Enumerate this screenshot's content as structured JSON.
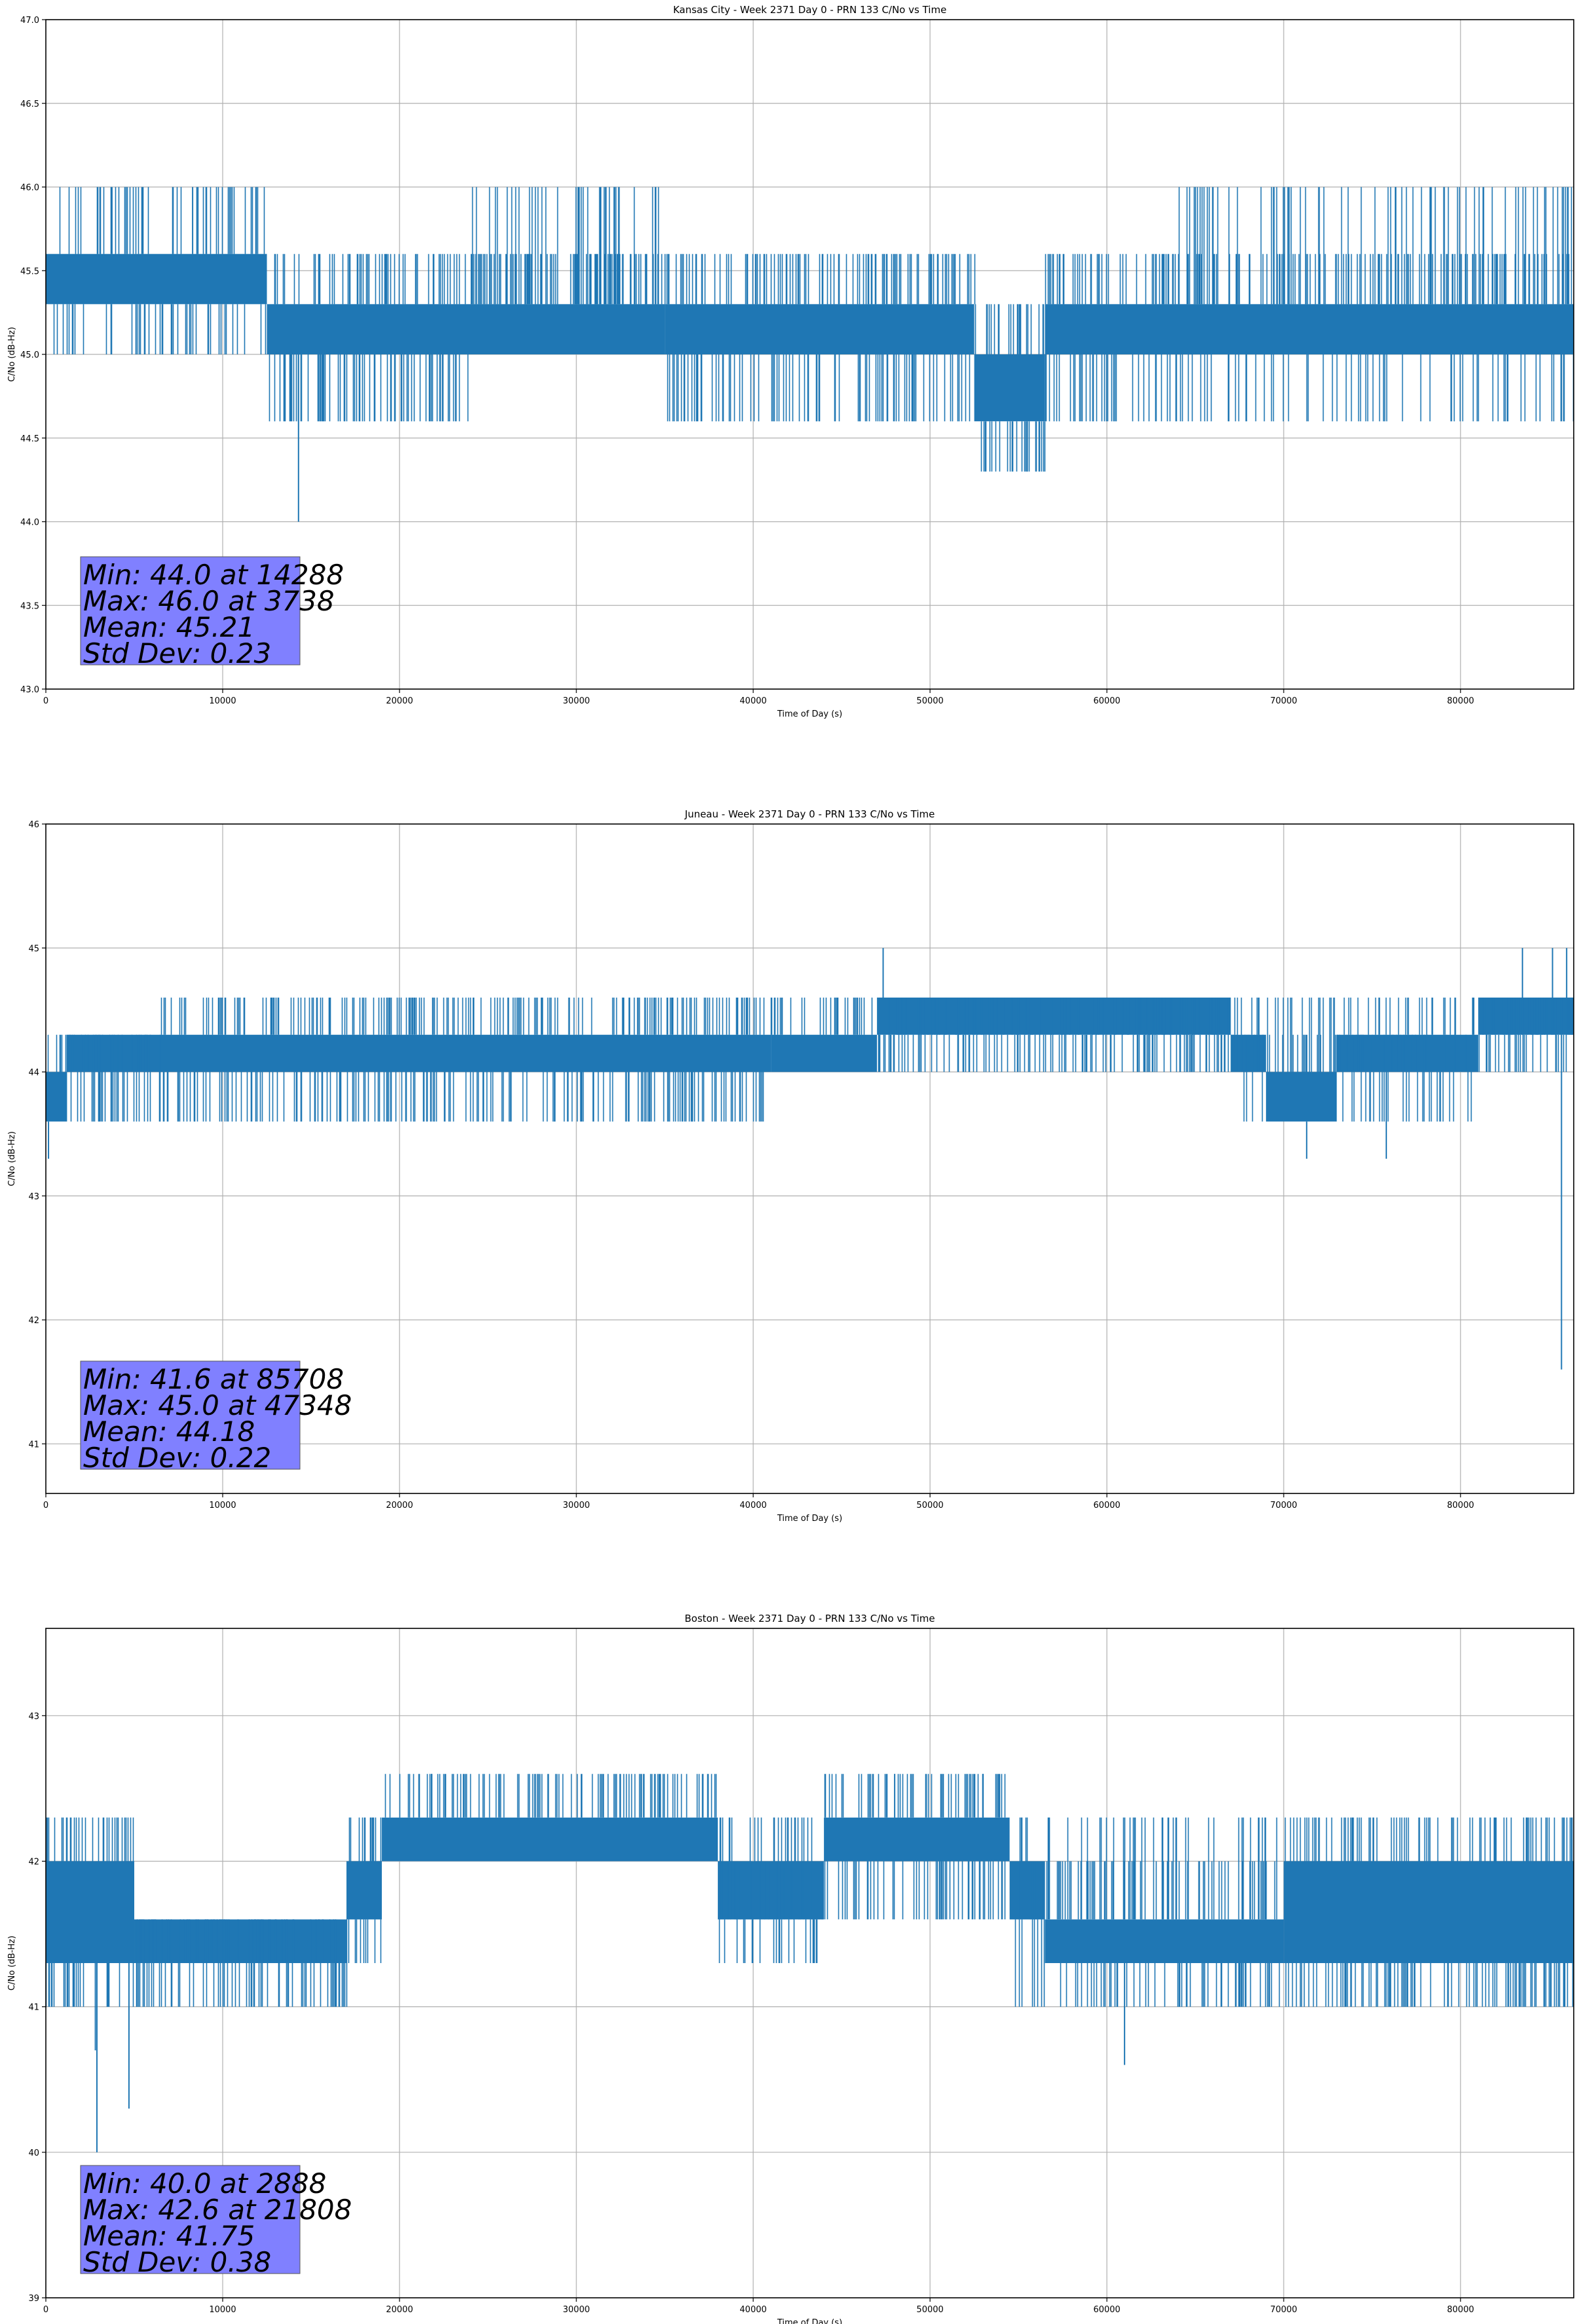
{
  "colors": {
    "series": "#1f77b4",
    "grid": "#b0b0b0",
    "stats_box": "#8080ff",
    "axis": "#000000"
  },
  "chart_data": [
    {
      "type": "line",
      "title": "Kansas City - Week 2371 Day 0 - PRN 133 C/No vs Time",
      "xlabel": "Time of Day (s)",
      "ylabel": "C/No (dB-Hz)",
      "xlim": [
        0,
        86400
      ],
      "ylim": [
        43.0,
        47.0
      ],
      "xticks": [
        0,
        10000,
        20000,
        30000,
        40000,
        50000,
        60000,
        70000,
        80000
      ],
      "xtick_labels": [
        "0",
        "10000",
        "20000",
        "30000",
        "40000",
        "50000",
        "60000",
        "70000",
        "80000"
      ],
      "yticks": [
        43.0,
        43.5,
        44.0,
        44.5,
        45.0,
        45.5,
        46.0,
        46.5,
        47.0
      ],
      "ytick_labels": [
        "43.0",
        "43.5",
        "44.0",
        "44.5",
        "45.0",
        "45.5",
        "46.0",
        "46.5",
        "47.0"
      ],
      "grid": true,
      "series": [
        {
          "name": "C/No",
          "bands": [
            {
              "x0": 0,
              "x1": 12500,
              "lo": 45.3,
              "hi": 45.6
            },
            {
              "x0": 12500,
              "x1": 35000,
              "lo": 45.0,
              "hi": 45.3
            },
            {
              "x0": 35000,
              "x1": 52500,
              "lo": 45.0,
              "hi": 45.3
            },
            {
              "x0": 52500,
              "x1": 56500,
              "lo": 44.6,
              "hi": 45.0
            },
            {
              "x0": 56500,
              "x1": 86400,
              "lo": 45.0,
              "hi": 45.3
            }
          ],
          "spike_regions": [
            {
              "x0": 0,
              "x1": 12500,
              "levels": [
                45.0,
                45.3,
                46.0
              ]
            },
            {
              "x0": 12500,
              "x1": 24000,
              "levels": [
                44.6,
                45.6
              ]
            },
            {
              "x0": 24000,
              "x1": 35000,
              "levels": [
                45.6,
                45.6,
                46.0
              ]
            },
            {
              "x0": 35000,
              "x1": 52500,
              "levels": [
                44.6,
                45.6
              ]
            },
            {
              "x0": 52500,
              "x1": 56500,
              "levels": [
                44.3,
                45.3
              ]
            },
            {
              "x0": 56500,
              "x1": 64000,
              "levels": [
                44.6,
                45.6
              ]
            },
            {
              "x0": 64000,
              "x1": 86400,
              "levels": [
                44.6,
                45.6,
                45.6,
                46.0
              ]
            }
          ],
          "extremes": [
            {
              "x": 14288,
              "y": 44.0
            },
            {
              "x": 3738,
              "y": 46.0
            },
            {
              "x": 8300,
              "y": 46.0
            },
            {
              "x": 8600,
              "y": 46.0
            },
            {
              "x": 30100,
              "y": 46.0
            },
            {
              "x": 55500,
              "y": 44.3
            },
            {
              "x": 66000,
              "y": 46.0
            },
            {
              "x": 70300,
              "y": 46.0
            }
          ]
        }
      ],
      "stats": {
        "min_text": "Min: 44.0 at 14288",
        "max_text": "Max: 46.0 at 3738",
        "mean_text": "Mean: 45.21",
        "std_text": "Std Dev: 0.23"
      }
    },
    {
      "type": "line",
      "title": "Juneau - Week 2371 Day 0 - PRN 133 C/No vs Time",
      "xlabel": "Time of Day (s)",
      "ylabel": "C/No (dB-Hz)",
      "xlim": [
        0,
        86400
      ],
      "ylim": [
        40.6,
        46.0
      ],
      "xticks": [
        0,
        10000,
        20000,
        30000,
        40000,
        50000,
        60000,
        70000,
        80000
      ],
      "xtick_labels": [
        "0",
        "10000",
        "20000",
        "30000",
        "40000",
        "50000",
        "60000",
        "70000",
        "80000"
      ],
      "yticks": [
        41,
        42,
        43,
        44,
        45,
        46
      ],
      "ytick_labels": [
        "41",
        "42",
        "43",
        "44",
        "45",
        "46"
      ],
      "grid": true,
      "series": [
        {
          "name": "C/No",
          "bands": [
            {
              "x0": 0,
              "x1": 1200,
              "lo": 43.6,
              "hi": 44.0
            },
            {
              "x0": 1200,
              "x1": 41000,
              "lo": 44.0,
              "hi": 44.3
            },
            {
              "x0": 41000,
              "x1": 47000,
              "lo": 44.0,
              "hi": 44.3
            },
            {
              "x0": 47000,
              "x1": 67000,
              "lo": 44.3,
              "hi": 44.6
            },
            {
              "x0": 67000,
              "x1": 69000,
              "lo": 44.0,
              "hi": 44.3
            },
            {
              "x0": 69000,
              "x1": 73000,
              "lo": 43.6,
              "hi": 44.0
            },
            {
              "x0": 73000,
              "x1": 81000,
              "lo": 44.0,
              "hi": 44.3
            },
            {
              "x0": 81000,
              "x1": 86400,
              "lo": 44.3,
              "hi": 44.6
            }
          ],
          "spike_regions": [
            {
              "x0": 0,
              "x1": 6500,
              "levels": [
                43.6,
                44.3
              ]
            },
            {
              "x0": 6500,
              "x1": 41000,
              "levels": [
                43.6,
                44.6
              ]
            },
            {
              "x0": 41000,
              "x1": 47000,
              "levels": [
                44.0,
                44.6
              ]
            },
            {
              "x0": 47000,
              "x1": 67000,
              "levels": [
                44.0,
                44.6
              ]
            },
            {
              "x0": 67000,
              "x1": 81000,
              "levels": [
                43.6,
                44.3,
                44.6
              ]
            },
            {
              "x0": 81000,
              "x1": 86400,
              "levels": [
                44.0,
                44.6
              ]
            }
          ],
          "extremes": [
            {
              "x": 85708,
              "y": 41.6
            },
            {
              "x": 47348,
              "y": 45.0
            },
            {
              "x": 150,
              "y": 43.3
            },
            {
              "x": 71300,
              "y": 43.3
            },
            {
              "x": 75800,
              "y": 43.3
            },
            {
              "x": 83500,
              "y": 45.0
            },
            {
              "x": 85200,
              "y": 45.0
            },
            {
              "x": 86000,
              "y": 45.0
            }
          ]
        }
      ],
      "stats": {
        "min_text": "Min: 41.6 at 85708",
        "max_text": "Max: 45.0 at 47348",
        "mean_text": "Mean: 44.18",
        "std_text": "Std Dev: 0.22"
      }
    },
    {
      "type": "line",
      "title": "Boston - Week 2371 Day 0 - PRN 133 C/No vs Time",
      "xlabel": "Time of Day (s)",
      "ylabel": "C/No (dB-Hz)",
      "xlim": [
        0,
        86400
      ],
      "ylim": [
        39.0,
        43.6
      ],
      "xticks": [
        0,
        10000,
        20000,
        30000,
        40000,
        50000,
        60000,
        70000,
        80000
      ],
      "xtick_labels": [
        "0",
        "10000",
        "20000",
        "30000",
        "40000",
        "50000",
        "60000",
        "70000",
        "80000"
      ],
      "yticks": [
        39,
        40,
        41,
        42,
        43
      ],
      "ytick_labels": [
        "39",
        "40",
        "41",
        "42",
        "43"
      ],
      "grid": true,
      "series": [
        {
          "name": "C/No",
          "bands": [
            {
              "x0": 0,
              "x1": 5000,
              "lo": 41.3,
              "hi": 42.0
            },
            {
              "x0": 5000,
              "x1": 17000,
              "lo": 41.3,
              "hi": 41.6
            },
            {
              "x0": 17000,
              "x1": 19000,
              "lo": 41.6,
              "hi": 42.0
            },
            {
              "x0": 19000,
              "x1": 38000,
              "lo": 42.0,
              "hi": 42.3
            },
            {
              "x0": 38000,
              "x1": 44000,
              "lo": 41.6,
              "hi": 42.0
            },
            {
              "x0": 44000,
              "x1": 54500,
              "lo": 42.0,
              "hi": 42.3
            },
            {
              "x0": 54500,
              "x1": 56500,
              "lo": 41.6,
              "hi": 42.0
            },
            {
              "x0": 56500,
              "x1": 70000,
              "lo": 41.3,
              "hi": 41.6
            },
            {
              "x0": 70000,
              "x1": 86400,
              "lo": 41.3,
              "hi": 42.0
            }
          ],
          "spike_regions": [
            {
              "x0": 0,
              "x1": 5000,
              "levels": [
                41.0,
                42.3
              ]
            },
            {
              "x0": 5000,
              "x1": 17000,
              "levels": [
                41.0,
                41.6
              ]
            },
            {
              "x0": 17000,
              "x1": 19000,
              "levels": [
                41.3,
                42.3
              ]
            },
            {
              "x0": 19000,
              "x1": 38000,
              "levels": [
                42.0,
                42.6
              ]
            },
            {
              "x0": 38000,
              "x1": 44000,
              "levels": [
                41.3,
                42.0,
                42.3
              ]
            },
            {
              "x0": 44000,
              "x1": 54500,
              "levels": [
                41.6,
                42.6
              ]
            },
            {
              "x0": 54500,
              "x1": 70000,
              "levels": [
                41.0,
                42.0,
                42.3
              ]
            },
            {
              "x0": 70000,
              "x1": 86400,
              "levels": [
                41.0,
                42.3
              ]
            }
          ],
          "extremes": [
            {
              "x": 2888,
              "y": 40.0
            },
            {
              "x": 21808,
              "y": 42.6
            },
            {
              "x": 4700,
              "y": 40.3
            },
            {
              "x": 2800,
              "y": 40.7
            },
            {
              "x": 61000,
              "y": 40.6
            },
            {
              "x": 48000,
              "y": 42.6
            },
            {
              "x": 53000,
              "y": 42.6
            }
          ]
        }
      ],
      "stats": {
        "min_text": "Min: 40.0 at 2888",
        "max_text": "Max: 42.6 at 21808",
        "mean_text": "Mean: 41.75",
        "std_text": "Std Dev: 0.38"
      }
    }
  ]
}
